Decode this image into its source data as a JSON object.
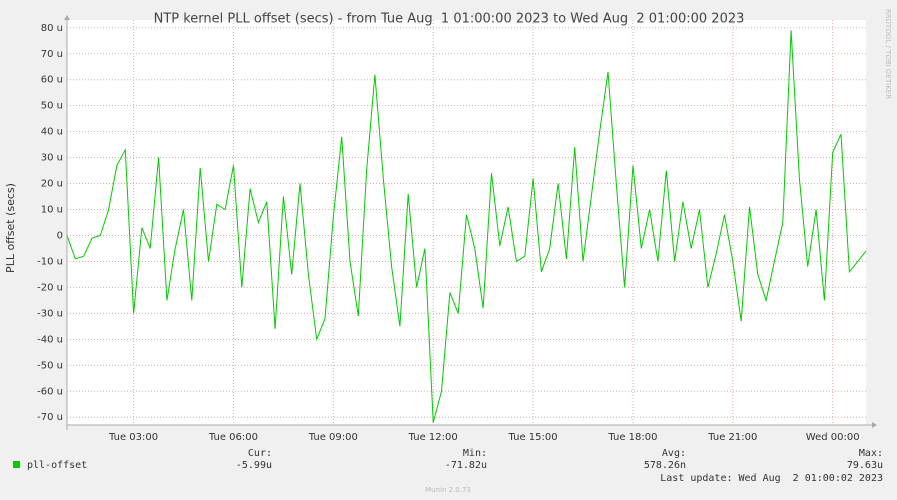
{
  "chart_data": {
    "type": "line",
    "title": "NTP kernel PLL offset (secs) - from Tue Aug  1 01:00:00 2023 to Wed Aug  2 01:00:00 2023",
    "y_label": "PLL offset (secs)",
    "x": [
      "2023-08-01T01:00",
      "2023-08-01T01:15",
      "2023-08-01T01:30",
      "2023-08-01T01:45",
      "2023-08-01T02:00",
      "2023-08-01T02:15",
      "2023-08-01T02:30",
      "2023-08-01T02:45",
      "2023-08-01T03:00",
      "2023-08-01T03:15",
      "2023-08-01T03:30",
      "2023-08-01T03:45",
      "2023-08-01T04:00",
      "2023-08-01T04:15",
      "2023-08-01T04:30",
      "2023-08-01T04:45",
      "2023-08-01T05:00",
      "2023-08-01T05:15",
      "2023-08-01T05:30",
      "2023-08-01T05:45",
      "2023-08-01T06:00",
      "2023-08-01T06:15",
      "2023-08-01T06:30",
      "2023-08-01T06:45",
      "2023-08-01T07:00",
      "2023-08-01T07:15",
      "2023-08-01T07:30",
      "2023-08-01T07:45",
      "2023-08-01T08:00",
      "2023-08-01T08:15",
      "2023-08-01T08:30",
      "2023-08-01T08:45",
      "2023-08-01T09:00",
      "2023-08-01T09:15",
      "2023-08-01T09:30",
      "2023-08-01T09:45",
      "2023-08-01T10:00",
      "2023-08-01T10:15",
      "2023-08-01T10:30",
      "2023-08-01T10:45",
      "2023-08-01T11:00",
      "2023-08-01T11:15",
      "2023-08-01T11:30",
      "2023-08-01T11:45",
      "2023-08-01T12:00",
      "2023-08-01T12:15",
      "2023-08-01T12:30",
      "2023-08-01T12:45",
      "2023-08-01T13:00",
      "2023-08-01T13:15",
      "2023-08-01T13:30",
      "2023-08-01T13:45",
      "2023-08-01T14:00",
      "2023-08-01T14:15",
      "2023-08-01T14:30",
      "2023-08-01T14:45",
      "2023-08-01T15:00",
      "2023-08-01T15:15",
      "2023-08-01T15:30",
      "2023-08-01T15:45",
      "2023-08-01T16:00",
      "2023-08-01T16:15",
      "2023-08-01T16:30",
      "2023-08-01T16:45",
      "2023-08-01T17:00",
      "2023-08-01T17:15",
      "2023-08-01T17:30",
      "2023-08-01T17:45",
      "2023-08-01T18:00",
      "2023-08-01T18:15",
      "2023-08-01T18:30",
      "2023-08-01T18:45",
      "2023-08-01T19:00",
      "2023-08-01T19:15",
      "2023-08-01T19:30",
      "2023-08-01T19:45",
      "2023-08-01T20:00",
      "2023-08-01T20:15",
      "2023-08-01T20:30",
      "2023-08-01T20:45",
      "2023-08-01T21:00",
      "2023-08-01T21:15",
      "2023-08-01T21:30",
      "2023-08-01T21:45",
      "2023-08-01T22:00",
      "2023-08-01T22:15",
      "2023-08-01T22:30",
      "2023-08-01T22:45",
      "2023-08-01T23:00",
      "2023-08-01T23:15",
      "2023-08-01T23:30",
      "2023-08-01T23:45",
      "2023-08-02T00:00",
      "2023-08-02T00:15",
      "2023-08-02T00:30",
      "2023-08-02T00:45",
      "2023-08-02T01:00"
    ],
    "series": [
      {
        "name": "pll-offset",
        "color": "#00cc00",
        "values": [
          0,
          -9,
          -8,
          -1,
          0,
          10,
          27,
          33,
          -30,
          3,
          -5,
          30,
          -25,
          -5,
          10,
          -25,
          26,
          -10,
          12,
          10,
          27,
          -20,
          18,
          5,
          13,
          -36,
          15,
          -15,
          20,
          -15,
          -40,
          -32,
          7,
          38,
          -10,
          -31,
          25,
          62,
          22,
          -12,
          -35,
          16,
          -20,
          -5,
          -72,
          -60,
          -22,
          -30,
          8,
          -5,
          -28,
          24,
          -4,
          11,
          -10,
          -8,
          22,
          -14,
          -5,
          20,
          -9,
          34,
          -10,
          15,
          40,
          63,
          20,
          -20,
          27,
          -5,
          10,
          -10,
          25,
          -10,
          13,
          -5,
          10,
          -20,
          -7,
          8,
          -10,
          -33,
          11,
          -15,
          -25,
          -10,
          5,
          79,
          22,
          -12,
          10,
          -25,
          32,
          39,
          -14,
          -10,
          -6
        ]
      }
    ],
    "xlim": [
      "2023-08-01T01:00",
      "2023-08-02T01:00"
    ],
    "xticks": [
      {
        "value": "2023-08-01T03:00",
        "label": "Tue 03:00"
      },
      {
        "value": "2023-08-01T06:00",
        "label": "Tue 06:00"
      },
      {
        "value": "2023-08-01T09:00",
        "label": "Tue 09:00"
      },
      {
        "value": "2023-08-01T12:00",
        "label": "Tue 12:00"
      },
      {
        "value": "2023-08-01T15:00",
        "label": "Tue 15:00"
      },
      {
        "value": "2023-08-01T18:00",
        "label": "Tue 18:00"
      },
      {
        "value": "2023-08-01T21:00",
        "label": "Tue 21:00"
      },
      {
        "value": "2023-08-02T00:00",
        "label": "Wed 00:00"
      }
    ],
    "ylim": [
      -73,
      83
    ],
    "yticks": [
      {
        "value": -70,
        "label": "-70 u"
      },
      {
        "value": -60,
        "label": "-60 u"
      },
      {
        "value": -50,
        "label": "-50 u"
      },
      {
        "value": -40,
        "label": "-40 u"
      },
      {
        "value": -30,
        "label": "-30 u"
      },
      {
        "value": -20,
        "label": "-20 u"
      },
      {
        "value": -10,
        "label": "-10 u"
      },
      0,
      {
        "value": 10,
        "label": "10 u"
      },
      {
        "value": 20,
        "label": "20 u"
      },
      {
        "value": 30,
        "label": "30 u"
      },
      {
        "value": 40,
        "label": "40 u"
      },
      {
        "value": 50,
        "label": "50 u"
      },
      {
        "value": 60,
        "label": "60 u"
      },
      {
        "value": 70,
        "label": "70 u"
      },
      {
        "value": 80,
        "label": "80 u"
      }
    ],
    "grid": true,
    "legend": {
      "stats": [
        {
          "label": "Cur:",
          "value": "-5.99u"
        },
        {
          "label": "Min:",
          "value": "-71.82u"
        },
        {
          "label": "Avg:",
          "value": "578.26n"
        },
        {
          "label": "Max:",
          "value": "79.63u"
        }
      ],
      "last_update": "Last update: Wed Aug  2 01:00:02 2023"
    },
    "footer": "Munin 2.0.73",
    "watermark": "RRDTOOL / TOBI OETIKER"
  }
}
